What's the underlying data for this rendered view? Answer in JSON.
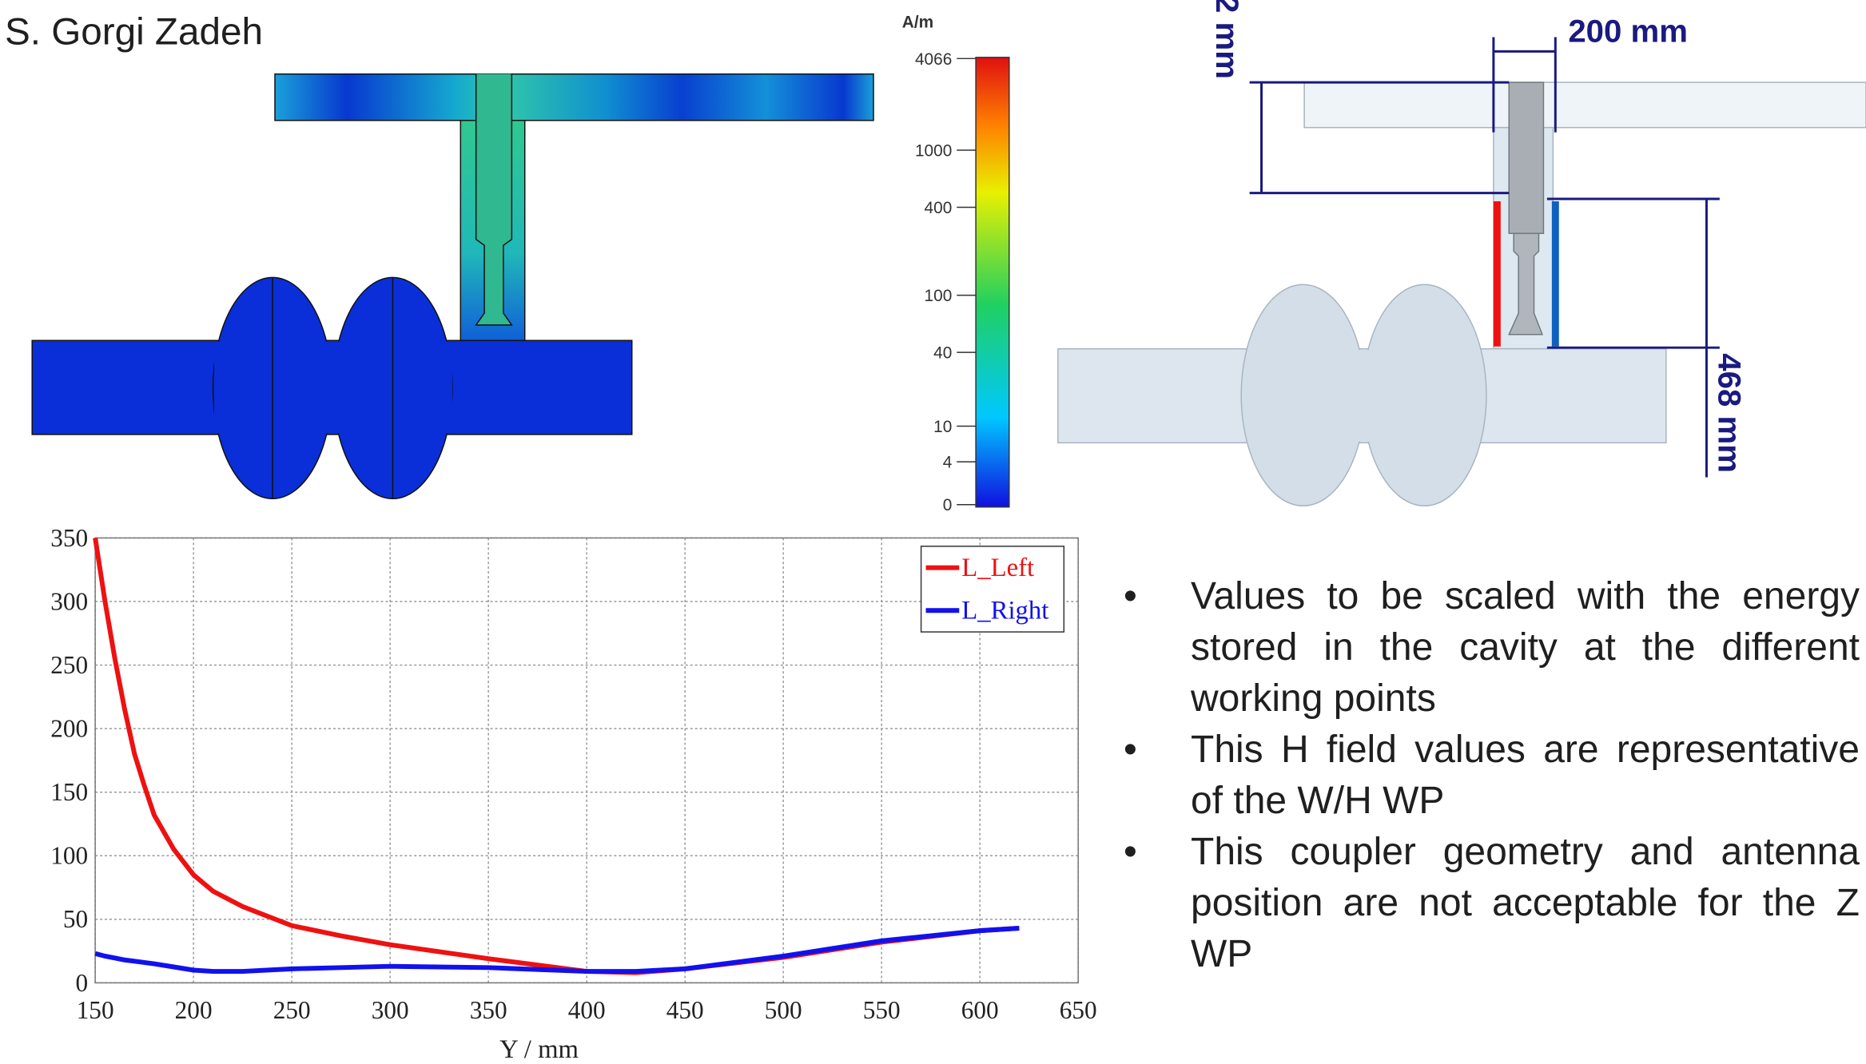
{
  "author": "S. Gorgi Zadeh",
  "colorbar": {
    "unit": "A/m",
    "labels": [
      "4066",
      "1000",
      "400",
      "100",
      "40",
      "10",
      "4",
      "0"
    ]
  },
  "dimensions": {
    "top": "2 mm",
    "width": "200 mm",
    "height": "468 mm"
  },
  "bullets": [
    "Values to be scaled with the energy stored in the cavity at the different working points",
    "This H field values are representative of the W/H WP",
    "This coupler geometry and antenna position are not acceptable for the Z WP"
  ],
  "chart_data": {
    "type": "line",
    "xlabel": "Y / mm",
    "x": [
      150,
      155,
      160,
      165,
      170,
      175,
      180,
      190,
      200,
      210,
      225,
      250,
      275,
      300,
      350,
      400,
      425,
      450,
      500,
      550,
      600,
      620
    ],
    "series": [
      {
        "name": "L_Left",
        "color": "#ee1111",
        "values": [
          350,
          300,
          255,
          215,
          180,
          155,
          132,
          105,
          85,
          72,
          60,
          45,
          37,
          30,
          19,
          9,
          8,
          11,
          20,
          32,
          41,
          43
        ]
      },
      {
        "name": "L_Right",
        "color": "#1111ee",
        "values": [
          23,
          21,
          19.5,
          18,
          17,
          16,
          15,
          12.5,
          10,
          9,
          9,
          11,
          12,
          13,
          12,
          9,
          9,
          11,
          21,
          33,
          41,
          43
        ]
      }
    ],
    "xlim": [
      150,
      650
    ],
    "ylim": [
      0,
      350
    ],
    "xticks": [
      150,
      200,
      250,
      300,
      350,
      400,
      450,
      500,
      550,
      600,
      650
    ],
    "yticks": [
      0,
      50,
      100,
      150,
      200,
      250,
      300,
      350
    ],
    "grid": true,
    "legend": "upper right"
  }
}
